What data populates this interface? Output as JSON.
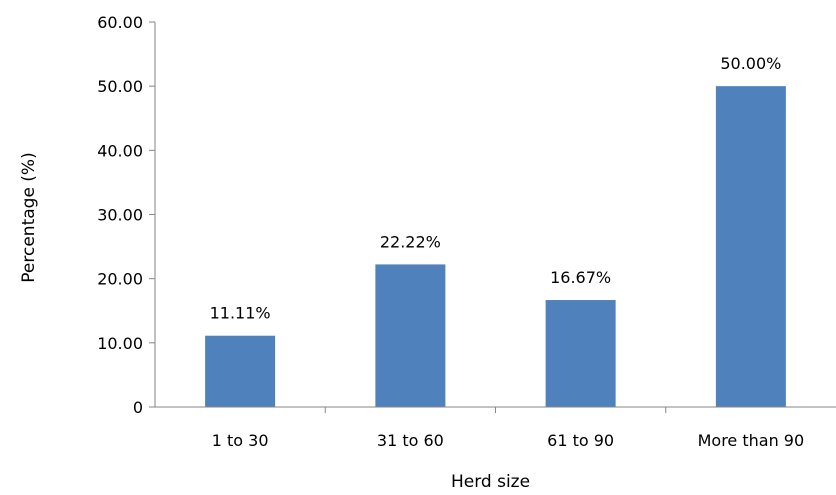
{
  "chart_data": {
    "type": "bar",
    "title": "",
    "xlabel": "Herd size",
    "ylabel": "Percentage (%)",
    "categories": [
      "1 to 30",
      "31 to 60",
      "61 to 90",
      "More than 90"
    ],
    "values": [
      11.11,
      22.22,
      16.67,
      50.0
    ],
    "data_labels": [
      "11.11%",
      "22.22%",
      "16.67%",
      "50.00%"
    ],
    "ylim": [
      0,
      60
    ],
    "yticks": [
      0,
      10,
      20,
      30,
      40,
      50,
      60
    ],
    "ytick_labels": [
      "0",
      "10.00",
      "20.00",
      "30.00",
      "40.00",
      "50.00",
      "60.00"
    ],
    "grid": false,
    "legend": "none",
    "bar_color": "#4f81bd"
  }
}
